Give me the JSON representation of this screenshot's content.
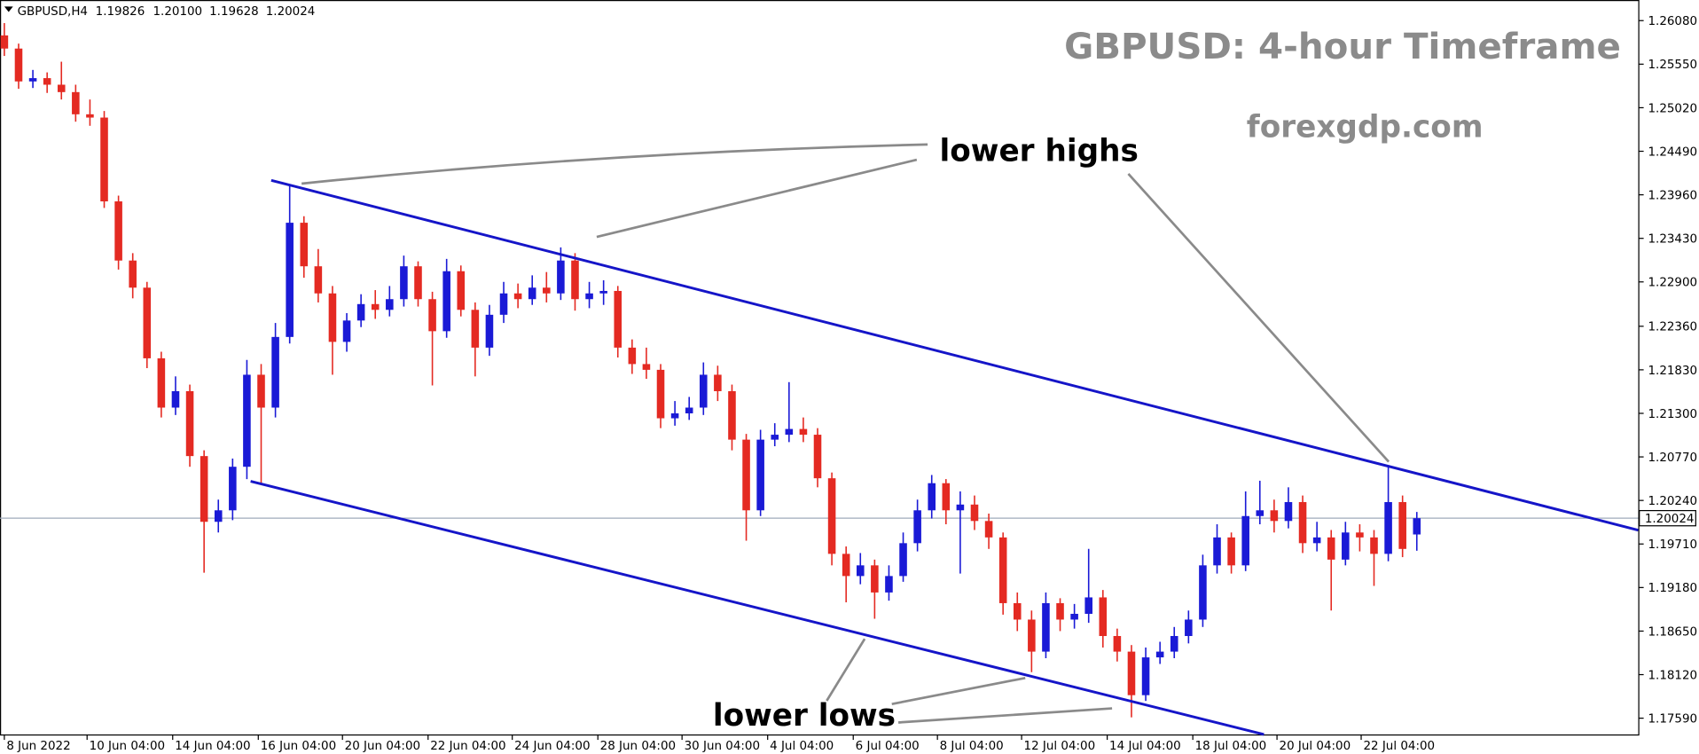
{
  "chart_data": {
    "type": "candlestick",
    "header": {
      "symbol": "GBPUSD,H4",
      "ohlc_labels": [
        "1.19826",
        "1.20100",
        "1.19628",
        "1.20024"
      ]
    },
    "title": "GBPUSD: 4-hour Timeframe",
    "subtitle": "forexgdp.com",
    "annotations": [
      "lower highs",
      "lower lows"
    ],
    "up_color": "#1a1ad6",
    "down_color": "#e42a22",
    "current_price": {
      "value": 1.20024,
      "label": "1.20024"
    },
    "xlim": [
      -0.304,
      114.52
    ],
    "ylim": [
      1.17392,
      1.26331
    ],
    "yticks": [
      {
        "value": 1.2608,
        "label": "1.26080"
      },
      {
        "value": 1.2555,
        "label": "1.25550"
      },
      {
        "value": 1.2502,
        "label": "1.25020"
      },
      {
        "value": 1.2449,
        "label": "1.24490"
      },
      {
        "value": 1.2396,
        "label": "1.23960"
      },
      {
        "value": 1.2343,
        "label": "1.23430"
      },
      {
        "value": 1.229,
        "label": "1.22900"
      },
      {
        "value": 1.2236,
        "label": "1.22360"
      },
      {
        "value": 1.2183,
        "label": "1.21830"
      },
      {
        "value": 1.213,
        "label": "1.21300"
      },
      {
        "value": 1.2077,
        "label": "1.20770"
      },
      {
        "value": 1.2024,
        "label": "1.20240"
      },
      {
        "value": 1.1971,
        "label": "1.19710"
      },
      {
        "value": 1.1918,
        "label": "1.19180"
      },
      {
        "value": 1.1865,
        "label": "1.18650"
      },
      {
        "value": 1.1812,
        "label": "1.18120"
      },
      {
        "value": 1.1759,
        "label": "1.17590"
      }
    ],
    "xticks": [
      {
        "value": 0,
        "label": "8 Jun 2022"
      },
      {
        "value": 5.8,
        "label": "10 Jun 04:00"
      },
      {
        "value": 11.8,
        "label": "14 Jun 04:00"
      },
      {
        "value": 17.8,
        "label": "16 Jun 04:00"
      },
      {
        "value": 23.7,
        "label": "20 Jun 04:00"
      },
      {
        "value": 29.7,
        "label": "22 Jun 04:00"
      },
      {
        "value": 35.6,
        "label": "24 Jun 04:00"
      },
      {
        "value": 41.6,
        "label": "28 Jun 04:00"
      },
      {
        "value": 47.5,
        "label": "30 Jun 04:00"
      },
      {
        "value": 53.5,
        "label": "4 Jul 04:00"
      },
      {
        "value": 59.5,
        "label": "6 Jul 04:00"
      },
      {
        "value": 65.4,
        "label": "8 Jul 04:00"
      },
      {
        "value": 71.3,
        "label": "12 Jul 04:00"
      },
      {
        "value": 77.3,
        "label": "14 Jul 04:00"
      },
      {
        "value": 83.3,
        "label": "18 Jul 04:00"
      },
      {
        "value": 89.2,
        "label": "20 Jul 04:00"
      },
      {
        "value": 95.1,
        "label": "22 Jul 04:00"
      }
    ],
    "ohlc": [
      [
        1.259,
        1.2605,
        1.2565,
        1.2574
      ],
      [
        1.2574,
        1.258,
        1.2525,
        1.2534
      ],
      [
        1.2534,
        1.2548,
        1.2526,
        1.2538
      ],
      [
        1.2538,
        1.2545,
        1.252,
        1.253
      ],
      [
        1.253,
        1.2558,
        1.2512,
        1.2521
      ],
      [
        1.2521,
        1.253,
        1.2485,
        1.2494
      ],
      [
        1.2494,
        1.2512,
        1.248,
        1.249
      ],
      [
        1.249,
        1.2498,
        1.238,
        1.2388
      ],
      [
        1.2388,
        1.2395,
        1.2305,
        1.2316
      ],
      [
        1.2316,
        1.2325,
        1.227,
        1.2283
      ],
      [
        1.2283,
        1.229,
        1.2185,
        1.2197
      ],
      [
        1.2197,
        1.2205,
        1.2125,
        1.2137
      ],
      [
        1.2137,
        1.2175,
        1.2128,
        1.2157
      ],
      [
        1.2157,
        1.2165,
        1.2065,
        1.2078
      ],
      [
        1.2078,
        1.2085,
        1.1936,
        1.1998
      ],
      [
        1.1998,
        1.2025,
        1.1985,
        1.2012
      ],
      [
        1.2012,
        1.2075,
        1.2,
        1.2065
      ],
      [
        1.2065,
        1.2195,
        1.205,
        1.2177
      ],
      [
        1.2177,
        1.219,
        1.2045,
        1.2137
      ],
      [
        1.2137,
        1.224,
        1.2125,
        1.2223
      ],
      [
        1.2223,
        1.2408,
        1.2215,
        1.2362
      ],
      [
        1.2362,
        1.237,
        1.2295,
        1.2309
      ],
      [
        1.2309,
        1.233,
        1.2265,
        1.2276
      ],
      [
        1.2276,
        1.2285,
        1.2177,
        1.2217
      ],
      [
        1.2217,
        1.2252,
        1.2205,
        1.2243
      ],
      [
        1.2243,
        1.2275,
        1.2235,
        1.2263
      ],
      [
        1.2263,
        1.228,
        1.2245,
        1.2256
      ],
      [
        1.2256,
        1.2285,
        1.2248,
        1.2269
      ],
      [
        1.2269,
        1.2322,
        1.226,
        1.2309
      ],
      [
        1.2309,
        1.2315,
        1.226,
        1.2269
      ],
      [
        1.2269,
        1.2278,
        1.2164,
        1.223
      ],
      [
        1.223,
        1.2318,
        1.2222,
        1.2303
      ],
      [
        1.2303,
        1.231,
        1.2248,
        1.2256
      ],
      [
        1.2256,
        1.2265,
        1.2175,
        1.221
      ],
      [
        1.221,
        1.2262,
        1.22,
        1.225
      ],
      [
        1.225,
        1.229,
        1.224,
        1.2276
      ],
      [
        1.2276,
        1.2288,
        1.2258,
        1.2269
      ],
      [
        1.2269,
        1.2298,
        1.2262,
        1.2283
      ],
      [
        1.2283,
        1.2302,
        1.2265,
        1.2276
      ],
      [
        1.2276,
        1.2332,
        1.2268,
        1.2316
      ],
      [
        1.2316,
        1.2325,
        1.2255,
        1.2269
      ],
      [
        1.2269,
        1.229,
        1.2258,
        1.2276
      ],
      [
        1.2276,
        1.2292,
        1.2262,
        1.2279
      ],
      [
        1.2279,
        1.2285,
        1.2198,
        1.221
      ],
      [
        1.221,
        1.222,
        1.2178,
        1.219
      ],
      [
        1.219,
        1.221,
        1.2172,
        1.2183
      ],
      [
        1.2183,
        1.219,
        1.2112,
        1.2124
      ],
      [
        1.2124,
        1.2145,
        1.2115,
        1.213
      ],
      [
        1.213,
        1.215,
        1.2122,
        1.2137
      ],
      [
        1.2137,
        1.2192,
        1.2128,
        1.2177
      ],
      [
        1.2177,
        1.2188,
        1.2145,
        1.2157
      ],
      [
        1.2157,
        1.2165,
        1.2085,
        1.2098
      ],
      [
        1.2098,
        1.2105,
        1.1975,
        1.2012
      ],
      [
        1.2012,
        1.211,
        1.2005,
        1.2098
      ],
      [
        1.2098,
        1.2118,
        1.209,
        1.2104
      ],
      [
        1.2104,
        1.2168,
        1.2095,
        1.2111
      ],
      [
        1.2111,
        1.2125,
        1.2095,
        1.2104
      ],
      [
        1.2104,
        1.2112,
        1.204,
        1.2051
      ],
      [
        1.2051,
        1.2058,
        1.1945,
        1.1959
      ],
      [
        1.1959,
        1.1968,
        1.19,
        1.1932
      ],
      [
        1.1932,
        1.196,
        1.1922,
        1.1945
      ],
      [
        1.1945,
        1.1952,
        1.188,
        1.1912
      ],
      [
        1.1912,
        1.1945,
        1.1902,
        1.1932
      ],
      [
        1.1932,
        1.1985,
        1.1925,
        1.1972
      ],
      [
        1.1972,
        1.2025,
        1.1962,
        1.2012
      ],
      [
        1.2012,
        1.2055,
        1.2002,
        1.2045
      ],
      [
        1.2045,
        1.205,
        1.1995,
        1.2012
      ],
      [
        1.2012,
        1.2035,
        1.1935,
        1.2019
      ],
      [
        1.2019,
        1.203,
        1.1988,
        1.1999
      ],
      [
        1.1999,
        1.2008,
        1.1965,
        1.1979
      ],
      [
        1.1979,
        1.1985,
        1.1885,
        1.1899
      ],
      [
        1.1899,
        1.1912,
        1.1865,
        1.1879
      ],
      [
        1.1879,
        1.189,
        1.1815,
        1.184
      ],
      [
        1.184,
        1.1912,
        1.1832,
        1.1899
      ],
      [
        1.1899,
        1.1905,
        1.1865,
        1.1879
      ],
      [
        1.1879,
        1.1898,
        1.1868,
        1.1886
      ],
      [
        1.1886,
        1.1965,
        1.1875,
        1.1906
      ],
      [
        1.1906,
        1.1915,
        1.1845,
        1.1859
      ],
      [
        1.1859,
        1.1868,
        1.1828,
        1.184
      ],
      [
        1.184,
        1.1848,
        1.176,
        1.1787
      ],
      [
        1.1787,
        1.1845,
        1.178,
        1.1833
      ],
      [
        1.1833,
        1.1852,
        1.1825,
        1.184
      ],
      [
        1.184,
        1.187,
        1.1832,
        1.1859
      ],
      [
        1.1859,
        1.189,
        1.185,
        1.1879
      ],
      [
        1.1879,
        1.1958,
        1.187,
        1.1945
      ],
      [
        1.1945,
        1.1995,
        1.1935,
        1.1979
      ],
      [
        1.1979,
        1.1985,
        1.1935,
        1.1945
      ],
      [
        1.1945,
        1.2035,
        1.1938,
        1.2005
      ],
      [
        1.2005,
        1.2048,
        1.1995,
        1.2012
      ],
      [
        1.2012,
        1.2025,
        1.1985,
        1.1999
      ],
      [
        1.1999,
        1.204,
        1.199,
        1.2022
      ],
      [
        1.2022,
        1.203,
        1.196,
        1.1972
      ],
      [
        1.1972,
        1.1998,
        1.1962,
        1.1979
      ],
      [
        1.1979,
        1.1988,
        1.189,
        1.1952
      ],
      [
        1.1952,
        1.1998,
        1.1945,
        1.1985
      ],
      [
        1.1985,
        1.1995,
        1.1962,
        1.1979
      ],
      [
        1.1979,
        1.1988,
        1.192,
        1.1959
      ],
      [
        1.1959,
        1.2067,
        1.195,
        1.2022
      ],
      [
        1.2022,
        1.203,
        1.1955,
        1.1965
      ],
      [
        1.19826,
        1.201,
        1.19628,
        1.20024
      ]
    ]
  }
}
